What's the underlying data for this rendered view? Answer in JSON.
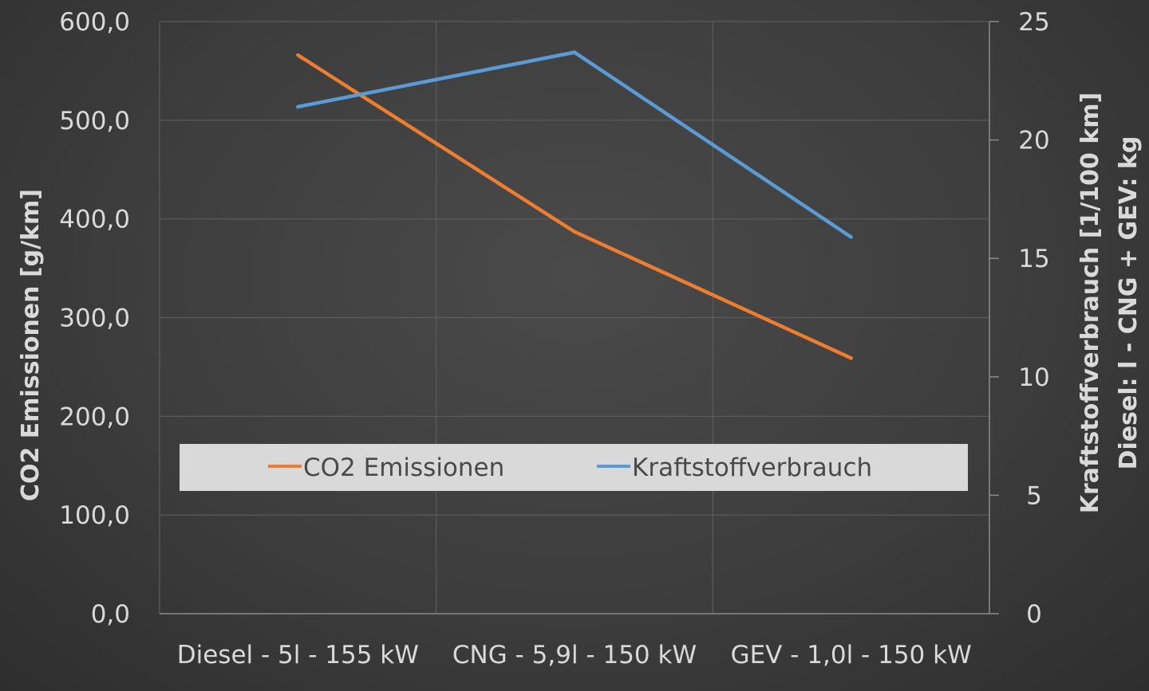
{
  "chart_data": {
    "type": "line",
    "categories": [
      "Diesel - 5l - 155 kW",
      "CNG - 5,9l - 150 kW",
      "GEV - 1,0l - 150 kW"
    ],
    "series": [
      {
        "name": "CO2 Emissionen",
        "axis": "left",
        "color": "#ed7d31",
        "values": [
          566.0,
          387.0,
          259.0
        ]
      },
      {
        "name": "Kraftstoffverbrauch",
        "axis": "right",
        "color": "#5b9bd5",
        "values": [
          21.4,
          23.7,
          15.9
        ]
      }
    ],
    "ylabel": "CO2 Emissionen [g/km]",
    "y2label_line1": "Kraftstoffverbrauch [1/100 km]",
    "y2label_line2": "Diesel: l - CNG + GEV: kg",
    "ylim": [
      0,
      600
    ],
    "y2lim": [
      0,
      25
    ],
    "yticks": [
      "0,0",
      "100,0",
      "200,0",
      "300,0",
      "400,0",
      "500,0",
      "600,0"
    ],
    "y2ticks": [
      "0",
      "5",
      "10",
      "15",
      "20",
      "25"
    ],
    "grid": true,
    "legend_position": "bottom-inside"
  }
}
